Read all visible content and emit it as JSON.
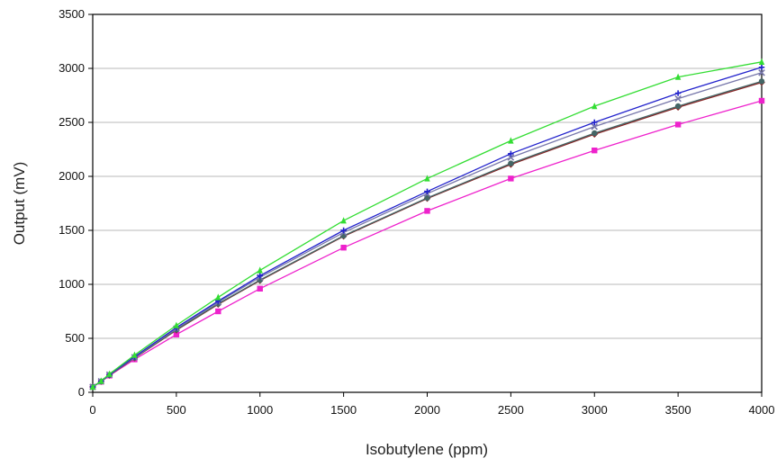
{
  "chart_data": {
    "type": "line",
    "xlabel": "Isobutylene (ppm)",
    "ylabel": "Output (mV)",
    "xlim": [
      0,
      4000
    ],
    "ylim": [
      0,
      3500
    ],
    "x_ticks": [
      "0",
      "500",
      "1000",
      "1500",
      "2000",
      "2500",
      "3000",
      "3500",
      "4000"
    ],
    "y_ticks": [
      "0",
      "500",
      "1000",
      "1500",
      "2000",
      "2500",
      "3000",
      "3500"
    ],
    "grid": "horizontal",
    "legend": "none",
    "x": [
      0,
      50,
      100,
      250,
      500,
      750,
      1000,
      1500,
      2000,
      2500,
      3000,
      3500,
      4000
    ],
    "series": [
      {
        "color": "#33dd33",
        "marker": "triangle",
        "values": [
          50,
          105,
          170,
          345,
          620,
          880,
          1130,
          1590,
          1980,
          2330,
          2650,
          2920,
          3060
        ]
      },
      {
        "color": "#2222cc",
        "marker": "plus",
        "values": [
          50,
          103,
          165,
          330,
          600,
          845,
          1080,
          1500,
          1860,
          2210,
          2500,
          2770,
          3010
        ]
      },
      {
        "color": "#7777aa",
        "marker": "x",
        "values": [
          50,
          102,
          163,
          325,
          590,
          835,
          1065,
          1480,
          1840,
          2175,
          2460,
          2720,
          2960
        ]
      },
      {
        "color": "#446666",
        "marker": "circle",
        "values": [
          50,
          100,
          160,
          320,
          580,
          820,
          1040,
          1450,
          1800,
          2120,
          2400,
          2650,
          2880
        ]
      },
      {
        "color": "#882222",
        "marker": "diamond",
        "values": [
          50,
          100,
          158,
          318,
          575,
          815,
          1035,
          1445,
          1795,
          2110,
          2390,
          2640,
          2870
        ]
      },
      {
        "color": "#ee22cc",
        "marker": "square",
        "values": [
          50,
          98,
          155,
          305,
          535,
          750,
          960,
          1340,
          1680,
          1980,
          2240,
          2480,
          2700
        ]
      }
    ]
  }
}
